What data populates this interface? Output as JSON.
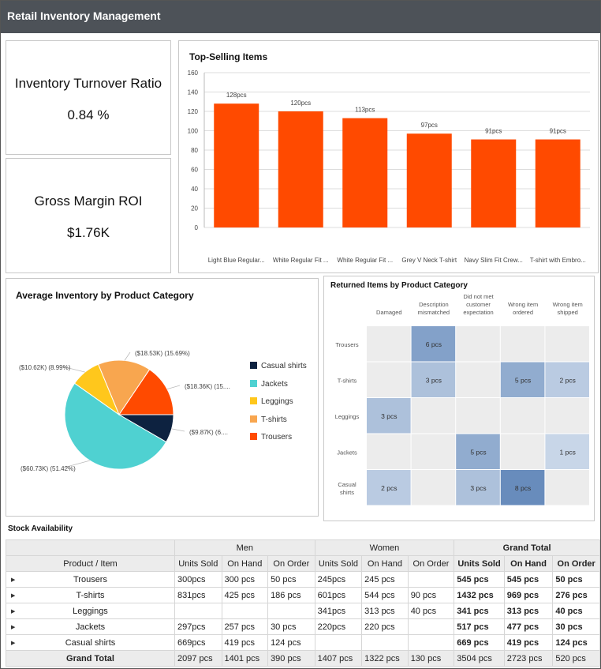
{
  "header": {
    "title": "Retail Inventory Management"
  },
  "kpis": [
    {
      "title": "Inventory Turnover Ratio",
      "value": "0.84 %"
    },
    {
      "title": "Gross Margin ROI",
      "value": "$1.76K"
    }
  ],
  "top_selling": {
    "title": "Top-Selling Items",
    "chart_data": {
      "type": "bar",
      "categories": [
        "Light Blue Regular...",
        "White Regular Fit ...",
        "White Regular Fit ...",
        "Grey V Neck T-shirt",
        "Navy Slim Fit Crew...",
        "T-shirt with Embro..."
      ],
      "values": [
        128,
        120,
        113,
        97,
        91,
        91
      ],
      "data_labels": [
        "128pcs",
        "120pcs",
        "113pcs",
        "97pcs",
        "91pcs",
        "91pcs"
      ],
      "y_ticks": [
        "0",
        "20",
        "40",
        "60",
        "80",
        "100",
        "120",
        "140",
        "160"
      ],
      "ylim": [
        0,
        160
      ],
      "bar_color": "#ff4a00",
      "grid": true
    }
  },
  "avg_inventory": {
    "title": "Average Inventory by Product Category",
    "chart_data": {
      "type": "pie",
      "slices": [
        {
          "name": "Casual shirts",
          "value": 9.87,
          "label": "($9.87K) (6....",
          "color": "#0d2240"
        },
        {
          "name": "Jackets",
          "value": 60.73,
          "label": "($60.73K) (51.42%)",
          "color": "#4fd1d1"
        },
        {
          "name": "Leggings",
          "value": 10.62,
          "label": "($10.62K) (8.99%)",
          "color": "#ffc71c"
        },
        {
          "name": "T-shirts",
          "value": 18.53,
          "label": "($18.53K) (15.69%)",
          "color": "#f8a64f"
        },
        {
          "name": "Trousers",
          "value": 18.36,
          "label": "($18.36K) (15....",
          "color": "#ff4a00"
        }
      ],
      "legend_position": "right"
    }
  },
  "returned": {
    "title": "Returned Items by Product Category",
    "chart_data": {
      "type": "heatmap",
      "columns": [
        "Damaged",
        "Description mismatched",
        "Did not met customer expectation",
        "Wrong item ordered",
        "Wrong item shipped"
      ],
      "rows": [
        "Trousers",
        "T-shirts",
        "Leggings",
        "Jackets",
        "Casual shirts"
      ],
      "values": [
        [
          null,
          6,
          null,
          null,
          null
        ],
        [
          null,
          3,
          null,
          5,
          2
        ],
        [
          3,
          null,
          null,
          null,
          null
        ],
        [
          null,
          null,
          5,
          null,
          1
        ],
        [
          2,
          null,
          3,
          8,
          null
        ]
      ],
      "cell_labels": [
        [
          "",
          "6 pcs",
          "",
          "",
          ""
        ],
        [
          "",
          "3 pcs",
          "",
          "5 pcs",
          "2 pcs"
        ],
        [
          "3 pcs",
          "",
          "",
          "",
          ""
        ],
        [
          "",
          "",
          "5 pcs",
          "",
          "1 pcs"
        ],
        [
          "2 pcs",
          "",
          "3 pcs",
          "8 pcs",
          ""
        ]
      ]
    }
  },
  "stock": {
    "title": "Stock Availability",
    "groups": [
      "Men",
      "Women",
      "Grand Total"
    ],
    "row_header": "Product / Item",
    "columns": [
      "Units Sold",
      "On Hand",
      "On Order",
      "Units Sold",
      "On Hand",
      "On Order",
      "Units Sold",
      "On Hand",
      "On Order"
    ],
    "rows": [
      {
        "label": "Trousers",
        "cells": [
          "300pcs",
          "300 pcs",
          "50 pcs",
          "245pcs",
          "245 pcs",
          "",
          "545 pcs",
          "545 pcs",
          "50 pcs"
        ]
      },
      {
        "label": "T-shirts",
        "cells": [
          "831pcs",
          "425 pcs",
          "186 pcs",
          "601pcs",
          "544 pcs",
          "90 pcs",
          "1432 pcs",
          "969 pcs",
          "276 pcs"
        ]
      },
      {
        "label": "Leggings",
        "cells": [
          "",
          "",
          "",
          "341pcs",
          "313 pcs",
          "40 pcs",
          "341 pcs",
          "313 pcs",
          "40 pcs"
        ]
      },
      {
        "label": "Jackets",
        "cells": [
          "297pcs",
          "257 pcs",
          "30 pcs",
          "220pcs",
          "220 pcs",
          "",
          "517 pcs",
          "477 pcs",
          "30 pcs"
        ]
      },
      {
        "label": "Casual shirts",
        "cells": [
          "669pcs",
          "419 pcs",
          "124 pcs",
          "",
          "",
          "",
          "669 pcs",
          "419 pcs",
          "124 pcs"
        ]
      }
    ],
    "total": {
      "label": "Grand Total",
      "cells": [
        "2097 pcs",
        "1401 pcs",
        "390 pcs",
        "1407 pcs",
        "1322 pcs",
        "130 pcs",
        "3504 pcs",
        "2723 pcs",
        "520 pcs"
      ]
    }
  }
}
